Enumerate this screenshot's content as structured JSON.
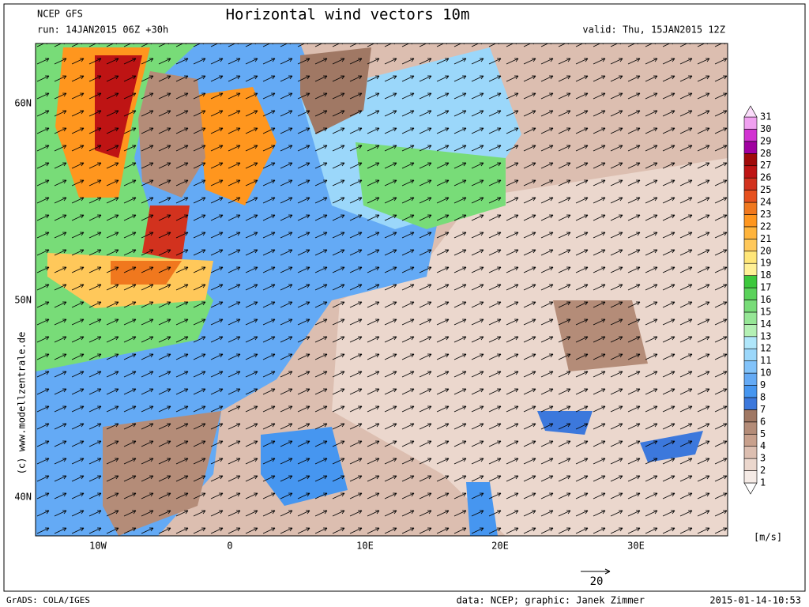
{
  "header": {
    "model": "NCEP GFS",
    "run": "run: 14JAN2015 06Z +30h",
    "title": "Horizontal wind vectors 10m",
    "valid": "valid: Thu, 15JAN2015 12Z"
  },
  "map": {
    "lat_labels": [
      "60N",
      "50N",
      "40N"
    ],
    "lon_labels": [
      "10W",
      "0",
      "10E",
      "20E",
      "30E"
    ],
    "watermark": "(c)  www.modellzentrale.de",
    "reference_vector": "20"
  },
  "colorbar": {
    "unit": "[m/s]",
    "levels": [
      1,
      2,
      3,
      4,
      5,
      6,
      7,
      8,
      9,
      10,
      11,
      12,
      13,
      14,
      15,
      16,
      17,
      18,
      19,
      20,
      21,
      22,
      23,
      24,
      25,
      26,
      27,
      28,
      29,
      30,
      31
    ],
    "colors": [
      "#ffffff",
      "#f5ebe6",
      "#ebd7cd",
      "#dcbeb0",
      "#c8a08c",
      "#b48c78",
      "#a07864",
      "#3c78dc",
      "#4696f0",
      "#64aaf5",
      "#82c3fa",
      "#9bd7fa",
      "#afe6fa",
      "#b4f0b4",
      "#96e696",
      "#78dc78",
      "#5ad25a",
      "#3cc83c",
      "#fff096",
      "#ffe678",
      "#ffc85a",
      "#ffb43c",
      "#ff961e",
      "#f0781e",
      "#e6501e",
      "#d2321e",
      "#be1414",
      "#a00a0a",
      "#a000a0",
      "#d232d2",
      "#f0a0f0",
      "#fadcfa"
    ]
  },
  "footer": {
    "software": "GrADS: COLA/IGES",
    "credit": "data: NCEP; graphic: Janek Zimmer",
    "timestamp": "2015-01-14-10:53"
  }
}
